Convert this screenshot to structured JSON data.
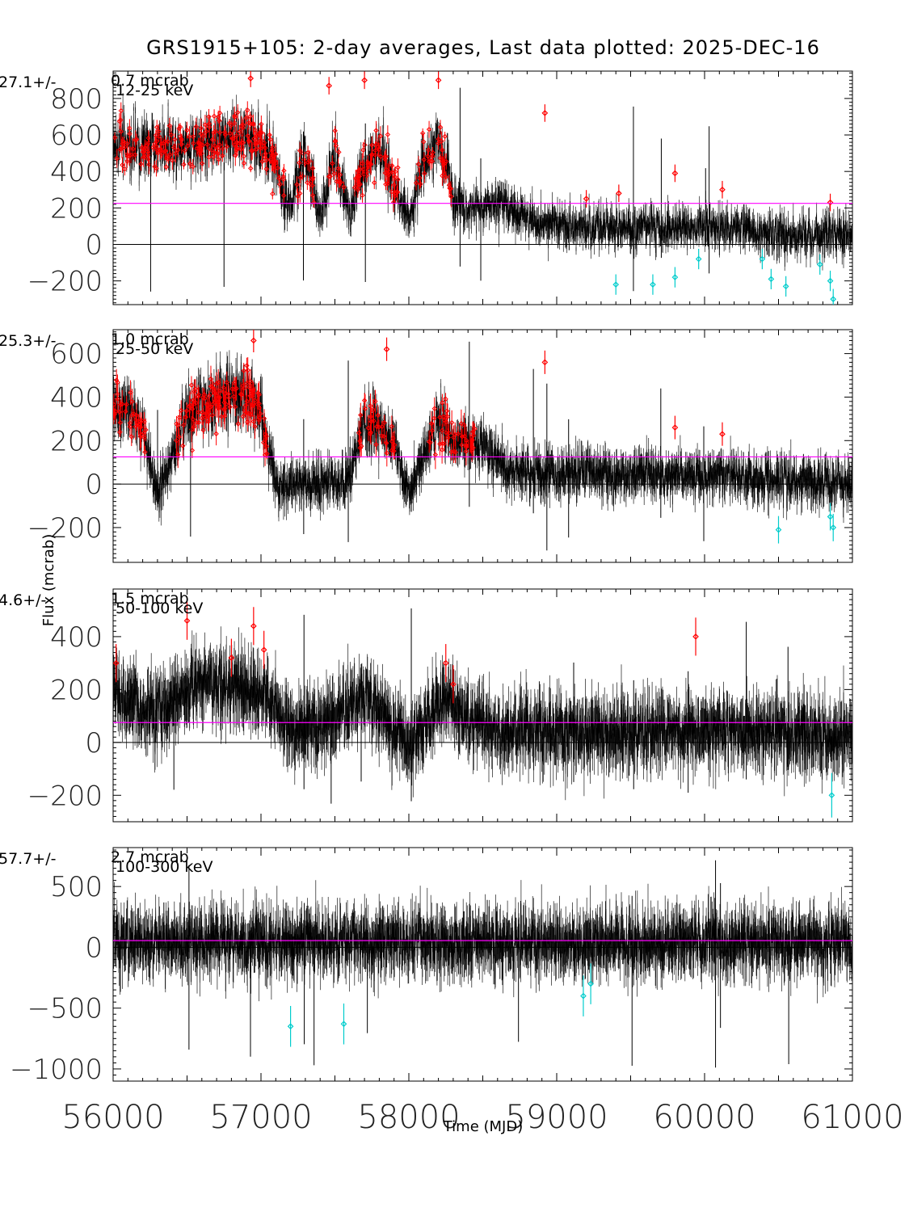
{
  "title": "GRS1915+105:  2-day averages,  Last data plotted: 2025-DEC-16",
  "xlabel": "Time (MJD)",
  "ylabel": "Flux (mcrab)",
  "colors": {
    "data": "#000000",
    "upper_outlier": "#ff0000",
    "lower_outlier": "#00cccc",
    "mean_line": "#ff00ff",
    "zero_line": "#000000"
  },
  "chart_data": [
    {
      "type": "scatter",
      "band": "12-25 keV",
      "mean_text": "27.1+/-",
      "err_text": "0.7 mcrab",
      "xlim": [
        56000,
        61000
      ],
      "ylim": [
        -330,
        950
      ],
      "yticks": [
        -200,
        0,
        200,
        400,
        600,
        800
      ],
      "xticks": [
        56000,
        57000,
        58000,
        59000,
        60000,
        61000
      ],
      "mean_level": 225,
      "curve_x": [
        56000,
        56200,
        56400,
        56600,
        56800,
        57000,
        57100,
        57200,
        57300,
        57400,
        57500,
        57600,
        57650,
        57800,
        58000,
        58100,
        58200,
        58300,
        58400,
        58600,
        58800,
        59000,
        59500,
        60000,
        60500,
        61000
      ],
      "curve_y": [
        550,
        520,
        560,
        540,
        600,
        560,
        420,
        200,
        480,
        150,
        500,
        150,
        350,
        520,
        150,
        460,
        560,
        260,
        200,
        220,
        150,
        110,
        80,
        100,
        60,
        60
      ],
      "high_points": [
        [
          56930,
          910
        ],
        [
          57460,
          870
        ],
        [
          57700,
          900
        ],
        [
          58200,
          900
        ],
        [
          58920,
          720
        ],
        [
          59420,
          280
        ],
        [
          59800,
          390
        ],
        [
          60120,
          300
        ],
        [
          60850,
          230
        ],
        [
          59200,
          250
        ]
      ],
      "low_points": [
        [
          59400,
          -220
        ],
        [
          59650,
          -220
        ],
        [
          59800,
          -180
        ],
        [
          59960,
          -80
        ],
        [
          60390,
          -80
        ],
        [
          60450,
          -190
        ],
        [
          60550,
          -230
        ],
        [
          60780,
          -110
        ],
        [
          60850,
          -200
        ],
        [
          60870,
          -300
        ]
      ]
    },
    {
      "type": "scatter",
      "band": "25-50 keV",
      "mean_text": "25.3+/-",
      "err_text": "1.0 mcrab",
      "xlim": [
        56000,
        61000
      ],
      "ylim": [
        -360,
        710
      ],
      "yticks": [
        -200,
        0,
        200,
        400,
        600
      ],
      "xticks": [
        56000,
        57000,
        58000,
        59000,
        60000,
        61000
      ],
      "mean_level": 125,
      "curve_x": [
        56000,
        56100,
        56200,
        56300,
        56500,
        56700,
        56900,
        57000,
        57100,
        57200,
        57400,
        57600,
        57700,
        57900,
        58000,
        58200,
        58300,
        58500,
        58700,
        59000,
        59500,
        60000,
        60500,
        61000
      ],
      "curve_y": [
        350,
        330,
        250,
        -50,
        320,
        400,
        420,
        330,
        0,
        0,
        0,
        20,
        300,
        200,
        -50,
        300,
        200,
        180,
        60,
        50,
        40,
        40,
        20,
        0
      ],
      "high_points": [
        [
          56950,
          660
        ],
        [
          57850,
          620
        ],
        [
          58920,
          560
        ],
        [
          59800,
          260
        ],
        [
          60120,
          230
        ]
      ],
      "low_points": [
        [
          60500,
          -210
        ],
        [
          60850,
          -150
        ],
        [
          60870,
          -200
        ]
      ]
    },
    {
      "type": "scatter",
      "band": "50-100 keV",
      "mean_text": "4.6+/-",
      "err_text": "1.5 mcrab",
      "xlim": [
        56000,
        61000
      ],
      "ylim": [
        -300,
        580
      ],
      "yticks": [
        -200,
        0,
        200,
        400
      ],
      "xticks": [
        56000,
        57000,
        58000,
        59000,
        60000,
        61000
      ],
      "mean_level": 75,
      "curve_x": [
        56000,
        56200,
        56400,
        56600,
        56800,
        57000,
        57200,
        57400,
        57700,
        58000,
        58200,
        58300,
        58500,
        59000,
        59500,
        60000,
        60500,
        61000
      ],
      "curve_y": [
        200,
        100,
        150,
        250,
        200,
        200,
        50,
        50,
        180,
        -20,
        150,
        150,
        50,
        40,
        40,
        40,
        40,
        20
      ],
      "high_points": [
        [
          56020,
          300
        ],
        [
          56500,
          460
        ],
        [
          56800,
          320
        ],
        [
          56950,
          440
        ],
        [
          57020,
          350
        ],
        [
          58250,
          300
        ],
        [
          58300,
          220
        ],
        [
          59940,
          400
        ]
      ],
      "low_points": [
        [
          60860,
          -200
        ]
      ]
    },
    {
      "type": "scatter",
      "band": "100-300 keV",
      "mean_text": "57.7+/-",
      "err_text": "2.7 mcrab",
      "xlim": [
        56000,
        61000
      ],
      "ylim": [
        -1100,
        820
      ],
      "yticks": [
        -1000,
        -500,
        0,
        500
      ],
      "xticks": [
        56000,
        57000,
        58000,
        59000,
        60000,
        61000
      ],
      "mean_level": 55,
      "curve_x": [
        56000,
        61000
      ],
      "curve_y": [
        40,
        40
      ],
      "high_points": [],
      "low_points": [
        [
          57200,
          -650
        ],
        [
          57560,
          -630
        ],
        [
          59180,
          -400
        ],
        [
          59230,
          -300
        ]
      ]
    }
  ]
}
